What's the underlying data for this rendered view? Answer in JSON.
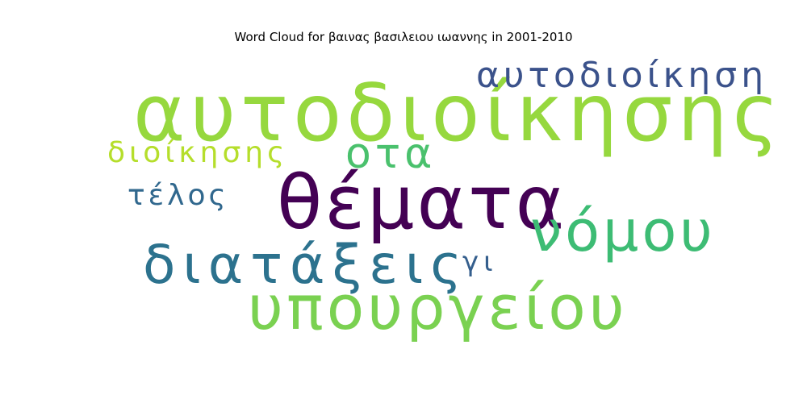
{
  "title": "Word Cloud for βαινας βασιλειου ιωαννης in 2001-2010",
  "words": [
    {
      "id": "w-autodioikisis",
      "name": "word-autodioikisis",
      "text": "αυτοδιοίκησης",
      "color": "#96d83e"
    },
    {
      "id": "w-themata",
      "name": "word-themata",
      "text": "θέματα",
      "color": "#440154"
    },
    {
      "id": "w-ypourgeiou",
      "name": "word-ypourgeiou",
      "text": "υπουργείου",
      "color": "#7ad151"
    },
    {
      "id": "w-nomou",
      "name": "word-nomou",
      "text": "νόμου",
      "color": "#3dbc74"
    },
    {
      "id": "w-diataxeis",
      "name": "word-diataxeis",
      "text": "διατάξεις",
      "color": "#2c728e"
    },
    {
      "id": "w-ota",
      "name": "word-ota",
      "text": "οτα",
      "color": "#4ac16d"
    },
    {
      "id": "w-autodioikisi",
      "name": "word-autodioikisi",
      "text": "αυτοδιοίκηση",
      "color": "#3b528b"
    },
    {
      "id": "w-dioikisis",
      "name": "word-dioikisis",
      "text": "διοίκησης",
      "color": "#b5de2b"
    },
    {
      "id": "w-telos",
      "name": "word-telos",
      "text": "τέλος",
      "color": "#31688e"
    },
    {
      "id": "w-gi",
      "name": "word-gi",
      "text": "γι",
      "color": "#355f8d"
    }
  ]
}
